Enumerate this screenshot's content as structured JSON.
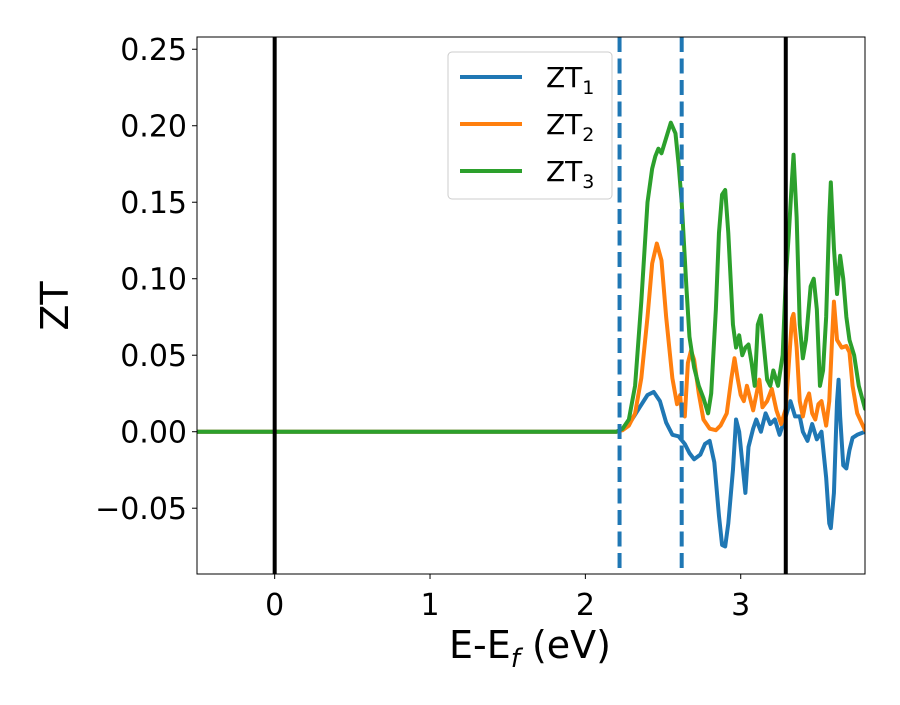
{
  "chart_data": {
    "type": "line",
    "title": "",
    "xlabel": "E-E",
    "xlabel_sub": "f",
    "xlabel_suffix": " (eV)",
    "ylabel": "ZT",
    "xlim": [
      -0.5,
      3.8
    ],
    "ylim": [
      -0.093,
      0.258
    ],
    "x_ticks": [
      0,
      1,
      2,
      3
    ],
    "x_tick_labels": [
      "0",
      "1",
      "2",
      "3"
    ],
    "y_ticks": [
      -0.05,
      0.0,
      0.05,
      0.1,
      0.15,
      0.2,
      0.25
    ],
    "y_tick_labels": [
      "−0.05",
      "0.00",
      "0.05",
      "0.10",
      "0.15",
      "0.20",
      "0.25"
    ],
    "grid": false,
    "legend_position": "top-center",
    "vertical_lines": [
      {
        "x": 0.0,
        "style": "solid",
        "color": "#000000"
      },
      {
        "x": 2.22,
        "style": "dashed",
        "color": "#1f77b4"
      },
      {
        "x": 2.62,
        "style": "dashed",
        "color": "#1f77b4"
      },
      {
        "x": 3.29,
        "style": "solid",
        "color": "#000000"
      }
    ],
    "series": [
      {
        "name": "ZT",
        "name_sub": "1",
        "color": "#1f77b4",
        "points": [
          [
            -0.5,
            0
          ],
          [
            2.2,
            0
          ],
          [
            2.25,
            0.002
          ],
          [
            2.3,
            0.008
          ],
          [
            2.35,
            0.016
          ],
          [
            2.4,
            0.024
          ],
          [
            2.44,
            0.026
          ],
          [
            2.48,
            0.02
          ],
          [
            2.52,
            0.006
          ],
          [
            2.56,
            -0.002
          ],
          [
            2.6,
            -0.003
          ],
          [
            2.64,
            -0.008
          ],
          [
            2.67,
            -0.014
          ],
          [
            2.7,
            -0.018
          ],
          [
            2.74,
            -0.015
          ],
          [
            2.77,
            -0.008
          ],
          [
            2.8,
            -0.006
          ],
          [
            2.83,
            -0.02
          ],
          [
            2.86,
            -0.055
          ],
          [
            2.88,
            -0.074
          ],
          [
            2.9,
            -0.075
          ],
          [
            2.92,
            -0.06
          ],
          [
            2.95,
            -0.025
          ],
          [
            2.97,
            0.008
          ],
          [
            2.99,
            0.0
          ],
          [
            3.01,
            -0.02
          ],
          [
            3.03,
            -0.04
          ],
          [
            3.05,
            -0.01
          ],
          [
            3.08,
            0.002
          ],
          [
            3.1,
            0.008
          ],
          [
            3.13,
            0.0
          ],
          [
            3.16,
            0.012
          ],
          [
            3.19,
            0.005
          ],
          [
            3.22,
            0.008
          ],
          [
            3.25,
            -0.002
          ],
          [
            3.29,
            0.01
          ],
          [
            3.32,
            0.02
          ],
          [
            3.35,
            0.01
          ],
          [
            3.38,
            0.01
          ],
          [
            3.4,
            0.0
          ],
          [
            3.43,
            -0.006
          ],
          [
            3.46,
            0.005
          ],
          [
            3.49,
            -0.005
          ],
          [
            3.52,
            0.0
          ],
          [
            3.55,
            -0.03
          ],
          [
            3.57,
            -0.06
          ],
          [
            3.58,
            -0.063
          ],
          [
            3.6,
            -0.04
          ],
          [
            3.62,
            0.02
          ],
          [
            3.63,
            0.034
          ],
          [
            3.64,
            0.01
          ],
          [
            3.66,
            -0.022
          ],
          [
            3.68,
            -0.024
          ],
          [
            3.7,
            -0.012
          ],
          [
            3.72,
            -0.004
          ],
          [
            3.75,
            -0.002
          ],
          [
            3.8,
            0.0
          ]
        ]
      },
      {
        "name": "ZT",
        "name_sub": "2",
        "color": "#ff7f0e",
        "points": [
          [
            -0.5,
            0
          ],
          [
            2.2,
            0
          ],
          [
            2.24,
            0.001
          ],
          [
            2.28,
            0.004
          ],
          [
            2.32,
            0.012
          ],
          [
            2.36,
            0.035
          ],
          [
            2.4,
            0.075
          ],
          [
            2.43,
            0.11
          ],
          [
            2.46,
            0.123
          ],
          [
            2.49,
            0.112
          ],
          [
            2.52,
            0.075
          ],
          [
            2.56,
            0.035
          ],
          [
            2.59,
            0.018
          ],
          [
            2.61,
            0.024
          ],
          [
            2.62,
            0.012
          ],
          [
            2.64,
            0.01
          ],
          [
            2.66,
            0.045
          ],
          [
            2.68,
            0.053
          ],
          [
            2.7,
            0.047
          ],
          [
            2.73,
            0.025
          ],
          [
            2.76,
            0.008
          ],
          [
            2.8,
            0.002
          ],
          [
            2.84,
            0.001
          ],
          [
            2.87,
            0.004
          ],
          [
            2.89,
            0.008
          ],
          [
            2.91,
            0.012
          ],
          [
            2.94,
            0.035
          ],
          [
            2.96,
            0.048
          ],
          [
            2.98,
            0.035
          ],
          [
            3.0,
            0.024
          ],
          [
            3.02,
            0.02
          ],
          [
            3.04,
            0.03
          ],
          [
            3.06,
            0.022
          ],
          [
            3.08,
            0.014
          ],
          [
            3.1,
            0.024
          ],
          [
            3.12,
            0.034
          ],
          [
            3.14,
            0.016
          ],
          [
            3.17,
            0.02
          ],
          [
            3.2,
            0.028
          ],
          [
            3.23,
            0.014
          ],
          [
            3.26,
            0.005
          ],
          [
            3.29,
            0.015
          ],
          [
            3.31,
            0.045
          ],
          [
            3.33,
            0.074
          ],
          [
            3.34,
            0.077
          ],
          [
            3.36,
            0.055
          ],
          [
            3.38,
            0.02
          ],
          [
            3.4,
            0.01
          ],
          [
            3.42,
            0.02
          ],
          [
            3.44,
            0.025
          ],
          [
            3.46,
            0.012
          ],
          [
            3.48,
            0.008
          ],
          [
            3.5,
            0.018
          ],
          [
            3.52,
            0.02
          ],
          [
            3.55,
            0.004
          ],
          [
            3.57,
            0.02
          ],
          [
            3.59,
            0.065
          ],
          [
            3.6,
            0.085
          ],
          [
            3.62,
            0.06
          ],
          [
            3.65,
            0.055
          ],
          [
            3.68,
            0.056
          ],
          [
            3.7,
            0.052
          ],
          [
            3.72,
            0.03
          ],
          [
            3.75,
            0.012
          ],
          [
            3.8,
            0.001
          ]
        ]
      },
      {
        "name": "ZT",
        "name_sub": "3",
        "color": "#2ca02c",
        "points": [
          [
            -0.5,
            0
          ],
          [
            2.2,
            0
          ],
          [
            2.24,
            0.002
          ],
          [
            2.28,
            0.008
          ],
          [
            2.32,
            0.03
          ],
          [
            2.36,
            0.085
          ],
          [
            2.4,
            0.15
          ],
          [
            2.43,
            0.172
          ],
          [
            2.45,
            0.18
          ],
          [
            2.47,
            0.185
          ],
          [
            2.49,
            0.182
          ],
          [
            2.52,
            0.192
          ],
          [
            2.55,
            0.202
          ],
          [
            2.58,
            0.195
          ],
          [
            2.6,
            0.175
          ],
          [
            2.62,
            0.15
          ],
          [
            2.65,
            0.095
          ],
          [
            2.67,
            0.062
          ],
          [
            2.7,
            0.042
          ],
          [
            2.73,
            0.03
          ],
          [
            2.76,
            0.022
          ],
          [
            2.79,
            0.012
          ],
          [
            2.81,
            0.025
          ],
          [
            2.84,
            0.08
          ],
          [
            2.86,
            0.13
          ],
          [
            2.88,
            0.155
          ],
          [
            2.9,
            0.158
          ],
          [
            2.92,
            0.13
          ],
          [
            2.95,
            0.07
          ],
          [
            2.97,
            0.055
          ],
          [
            2.99,
            0.063
          ],
          [
            3.01,
            0.05
          ],
          [
            3.03,
            0.055
          ],
          [
            3.05,
            0.057
          ],
          [
            3.07,
            0.045
          ],
          [
            3.09,
            0.03
          ],
          [
            3.11,
            0.07
          ],
          [
            3.13,
            0.076
          ],
          [
            3.15,
            0.055
          ],
          [
            3.17,
            0.034
          ],
          [
            3.19,
            0.03
          ],
          [
            3.21,
            0.04
          ],
          [
            3.24,
            0.03
          ],
          [
            3.27,
            0.05
          ],
          [
            3.29,
            0.1
          ],
          [
            3.31,
            0.13
          ],
          [
            3.33,
            0.165
          ],
          [
            3.34,
            0.181
          ],
          [
            3.36,
            0.14
          ],
          [
            3.38,
            0.07
          ],
          [
            3.4,
            0.048
          ],
          [
            3.42,
            0.06
          ],
          [
            3.45,
            0.095
          ],
          [
            3.47,
            0.1
          ],
          [
            3.49,
            0.08
          ],
          [
            3.51,
            0.03
          ],
          [
            3.53,
            0.04
          ],
          [
            3.55,
            0.075
          ],
          [
            3.57,
            0.14
          ],
          [
            3.58,
            0.163
          ],
          [
            3.6,
            0.12
          ],
          [
            3.62,
            0.09
          ],
          [
            3.64,
            0.115
          ],
          [
            3.66,
            0.1
          ],
          [
            3.68,
            0.075
          ],
          [
            3.7,
            0.06
          ],
          [
            3.73,
            0.05
          ],
          [
            3.76,
            0.03
          ],
          [
            3.8,
            0.015
          ]
        ]
      }
    ]
  }
}
